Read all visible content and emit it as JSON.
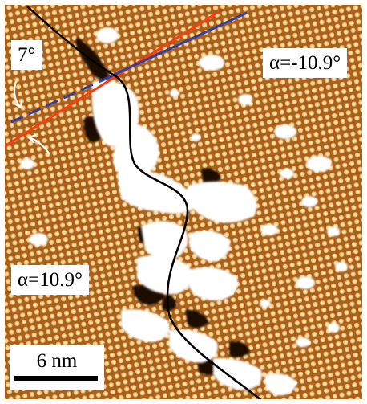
{
  "image": {
    "kind": "STM micrograph",
    "colors": {
      "background": "#b86a1c",
      "atom_bright": "#f2c77c",
      "atom_dark": "#8a4610",
      "cluster": "#ffffff",
      "pit": "#1a0800",
      "boundary_line": "#000000",
      "line_red": "#ff3a10",
      "line_blue": "#2e3fa8"
    },
    "icons": [
      "arrow-icon"
    ]
  },
  "annotations": {
    "angle_small": "7°",
    "alpha_top": "α=-10.9°",
    "alpha_bottom": "α=10.9°",
    "scale_bar": "6 nm"
  }
}
